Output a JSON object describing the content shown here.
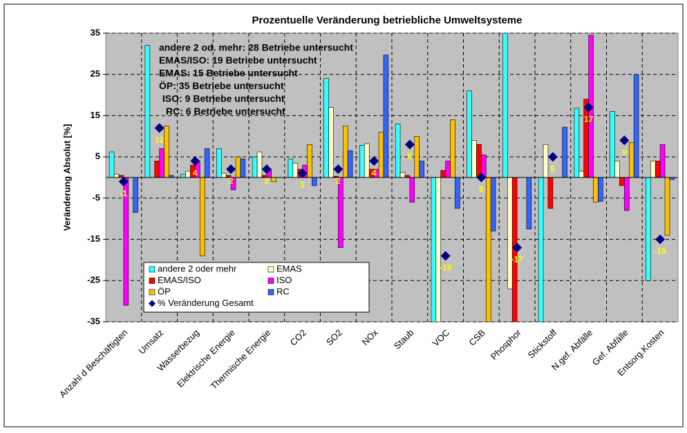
{
  "chart_data": {
    "type": "bar",
    "title": "Prozentuelle Veränderung betriebliche Umweltsysteme",
    "y_label": "Veränderung Absolut [%]",
    "categories": [
      "Anzahl d Beschäftigten",
      "Umsatz",
      "Wasserbezug",
      "Elektrische Energie",
      "Thermische Energie",
      "CO2",
      "SO2",
      "NOx",
      "Staub",
      "VOC",
      "CSB",
      "Phosphor",
      "Stickstoff",
      "N.gef. Abfälle",
      "Gef. Abfälle",
      "Entsorg.Kosten"
    ],
    "series": [
      {
        "name": "andere 2 oder mehr",
        "color": "#33ffff",
        "values": [
          6.2,
          32,
          0.8,
          7,
          5,
          4.5,
          24,
          7.8,
          13,
          -35,
          21,
          35,
          -35,
          16.8,
          16,
          -25
        ]
      },
      {
        "name": "EMAS",
        "color": "#ffffcc",
        "values": [
          0.8,
          0,
          1.5,
          1,
          6.2,
          3.5,
          17,
          8.2,
          1.2,
          -35,
          9,
          -27,
          8,
          1.5,
          4,
          4
        ]
      },
      {
        "name": "EMAS/ISO",
        "color": "#ff0000",
        "values": [
          0.5,
          4,
          3,
          0.5,
          0.5,
          2,
          0.3,
          2,
          0.5,
          1.7,
          8,
          -35,
          -7.5,
          19,
          -2,
          4
        ]
      },
      {
        "name": "ISO",
        "color": "#ff00ff",
        "values": [
          -31,
          7,
          4,
          -3,
          2,
          3,
          -17,
          2,
          -6,
          4,
          5.5,
          0,
          0,
          34.5,
          -8,
          8
        ]
      },
      {
        "name": "ÖP",
        "color": "#ffc000",
        "values": [
          0,
          12.5,
          -19,
          5,
          -1,
          8,
          12.5,
          11,
          10,
          14,
          -35,
          0,
          0,
          -6,
          8.5,
          -14
        ]
      },
      {
        "name": "RC",
        "color": "#3366ff",
        "values": [
          -8.5,
          0.5,
          7,
          4.5,
          0,
          -2,
          6.5,
          29.7,
          4,
          -7.5,
          -13,
          -12.5,
          12.2,
          -5.8,
          25,
          -0.5
        ]
      }
    ],
    "total": {
      "name": "% Veränderung Gesamt",
      "color": "#000080",
      "label_color": "#ffff00",
      "values": [
        -1,
        12,
        4,
        2,
        2,
        1,
        2,
        4,
        8,
        -19,
        0,
        -17,
        5,
        17,
        9,
        -15
      ]
    },
    "annotations": [
      "andere 2 od. mehr: 28 Betriebe untersucht",
      "EMAS/ISO: 19 Betriebe untersucht",
      "EMAS: 15 Betriebe untersucht",
      "ÖP: 35 Betriebe untersucht",
      "ISO: 9 Betriebe untersucht",
      "RC: 6 Betriebe untersucht"
    ],
    "ylim": [
      -35,
      35
    ],
    "yticks": [
      -35,
      -25,
      -15,
      -5,
      5,
      15,
      25,
      35
    ],
    "grid": true,
    "plot_color": "#c0c0c0"
  }
}
